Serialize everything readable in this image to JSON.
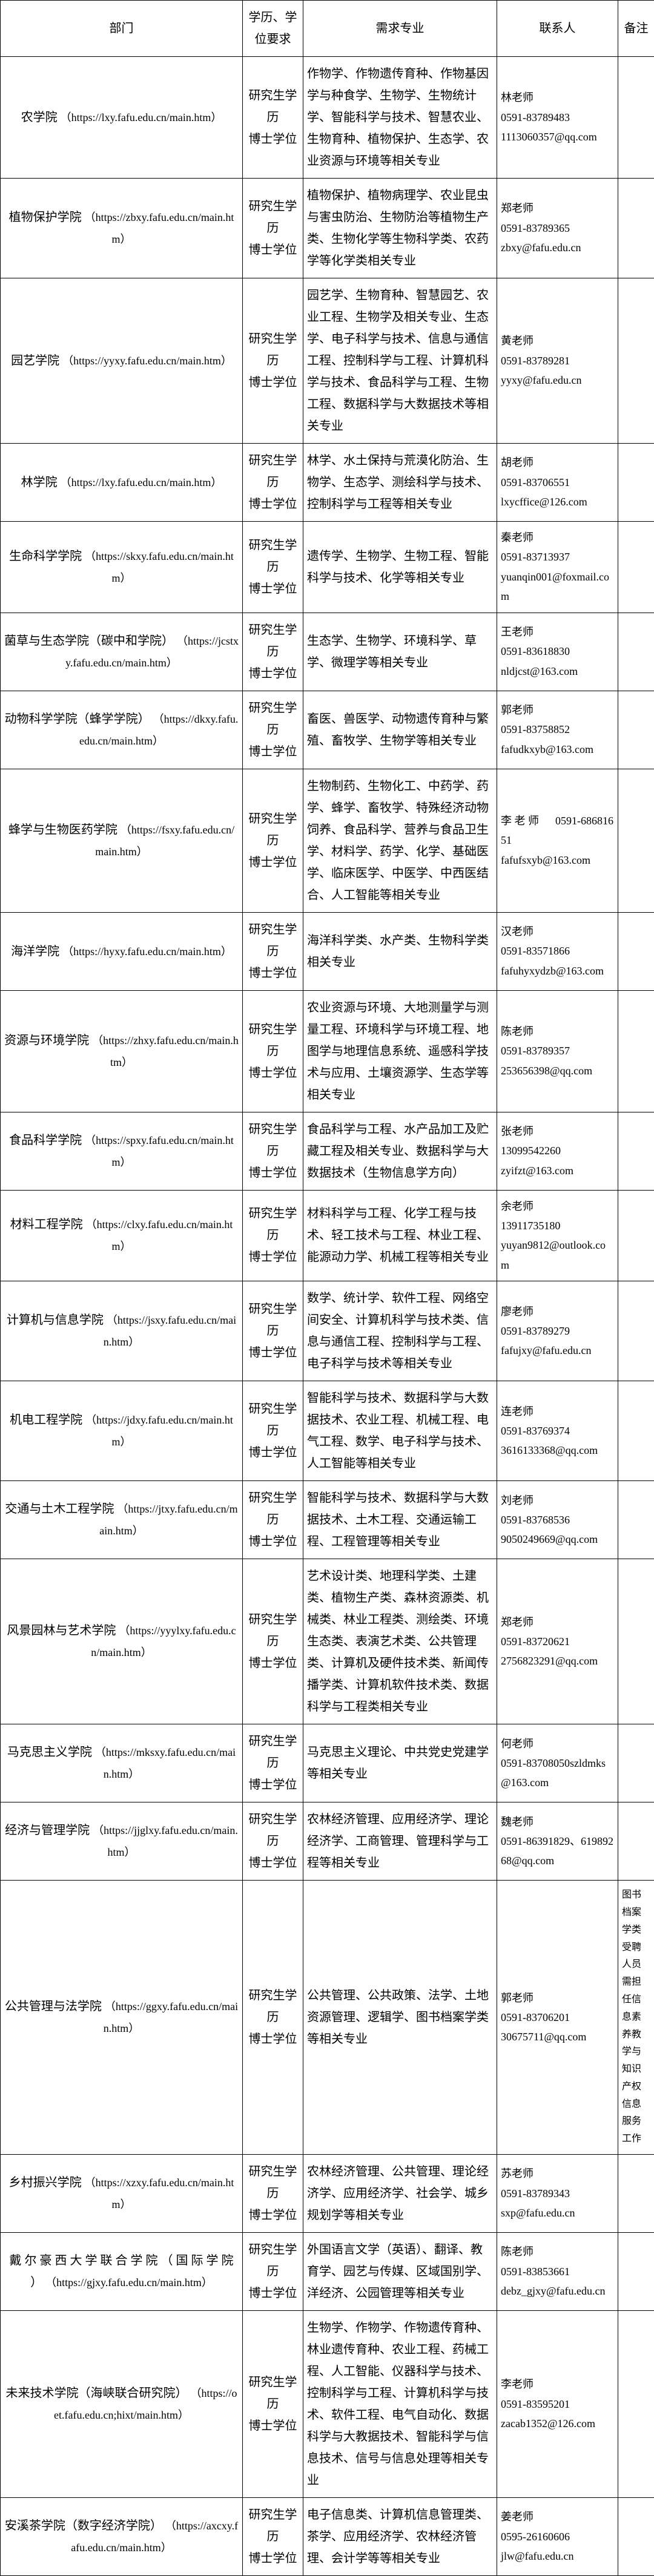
{
  "headers": {
    "dept": "部门",
    "edu": "学历、学位要求",
    "major": "需求专业",
    "contact": "联系人",
    "remark": "备注"
  },
  "edu_text": "研究生学历\n博士学位",
  "rows": [
    {
      "dept_name": "农学院",
      "dept_url": "https://lxy.fafu.edu.cn/main.htm",
      "major": "作物学、作物遗传育种、作物基因学与种食学、生物学、生物统计学、智能科学与技术、智慧农业、生物育种、植物保护、生态学、农业资源与环境等相关专业",
      "contact": "林老师\n0591-83789483\n1113060357@qq.com",
      "remark": ""
    },
    {
      "dept_name": "植物保护学院",
      "dept_url": "https://zbxy.fafu.edu.cn/main.htm",
      "major": "植物保护、植物病理学、农业昆虫与害虫防治、生物防治等植物生产类、生物化学等生物科学类、农药学等化学类相关专业",
      "contact": "郑老师\n0591-83789365\nzbxy@fafu.edu.cn",
      "remark": ""
    },
    {
      "dept_name": "园艺学院",
      "dept_url": "https://yyxy.fafu.edu.cn/main.htm",
      "major": "园艺学、生物育种、智慧园艺、农业工程、生物学及相关专业、生态学、电子科学与技术、信息与通信工程、控制科学与工程、计算机科学与技术、食品科学与工程、生物工程、数据科学与大数据技术等相关专业",
      "contact": "黄老师\n0591-83789281\nyyxy@fafu.edu.cn",
      "remark": ""
    },
    {
      "dept_name": "林学院",
      "dept_url": "https://lxy.fafu.edu.cn/main.htm",
      "major": "林学、水土保持与荒漠化防治、生物学、生态学、测绘科学与技术、控制科学与工程等相关专业",
      "contact": "胡老师\n0591-83706551\nlxycffice@126.com",
      "remark": ""
    },
    {
      "dept_name": "生命科学学院",
      "dept_url": "https://skxy.fafu.edu.cn/main.htm",
      "major": "遗传学、生物学、生物工程、智能科学与技术、化学等相关专业",
      "contact": "秦老师\n0591-83713937\nyuanqin001@foxmail.com",
      "remark": ""
    },
    {
      "dept_name": "菌草与生态学院（碳中和学院）",
      "dept_url": "https://jcstxy.fafu.edu.cn/main.htm",
      "major": "生态学、生物学、环境科学、草学、微理学等相关专业",
      "contact": "王老师\n0591-83618830\nnldjcst@163.com",
      "remark": ""
    },
    {
      "dept_name": "动物科学学院（蜂学学院）",
      "dept_url": "https://dkxy.fafu.edu.cn/main.htm",
      "major": "畜医、兽医学、动物遗传育种与繁殖、畜牧学、生物学等相关专业",
      "contact": "郭老师\n0591-83758852\nfafudkxyb@163.com",
      "remark": ""
    },
    {
      "dept_name": "蜂学与生物医药学院",
      "dept_url": "https://fsxy.fafu.edu.cn/main.htm",
      "major": "生物制药、生物化工、中药学、药学、蜂学、畜牧学、特殊经济动物饲养、食品科学、营养与食品卫生学、材料学、药学、化学、基础医学、临床医学、中医学、中西医结合、人工智能等相关专业",
      "contact": "李 老 师 　 0591-68681651\nfafufsxyb@163.com",
      "remark": ""
    },
    {
      "dept_name": "海洋学院",
      "dept_url": "https://hyxy.fafu.edu.cn/main.htm",
      "major": "海洋科学类、水产类、生物科学类相关专业",
      "contact": "汉老师\n0591-83571866\nfafuhyxydzb@163.com",
      "remark": ""
    },
    {
      "dept_name": "资源与环境学院",
      "dept_url": "https://zhxy.fafu.edu.cn/main.htm",
      "major": "农业资源与环境、大地测量学与测量工程、环境科学与环境工程、地图学与地理信息系统、遥感科学技术与应用、土壤资源学、生态学等相关专业",
      "contact": "陈老师\n0591-83789357\n253656398@qq.com",
      "remark": ""
    },
    {
      "dept_name": "食品科学学院",
      "dept_url": "https://spxy.fafu.edu.cn/main.htm",
      "major": "食品科学与工程、水产品加工及贮藏工程及相关专业、数据科学与大数据技术（生物信息学方向）",
      "contact": "张老师\n13099542260\nzyifzt@163.com",
      "remark": ""
    },
    {
      "dept_name": "材料工程学院",
      "dept_url": "https://clxy.fafu.edu.cn/main.htm",
      "major": "材料科学与工程、化学工程与技术、轻工技术与工程、林业工程、能源动力学、机械工程等相关专业",
      "contact": "余老师\n13911735180\nyuyan9812@outlook.com",
      "remark": ""
    },
    {
      "dept_name": "计算机与信息学院",
      "dept_url": "https://jsxy.fafu.edu.cn/main.htm",
      "major": "数学、统计学、软件工程、网络空间安全、计算机科学与技术类、信息与通信工程、控制科学与工程、电子科学与技术等相关专业",
      "contact": "廖老师\n0591-83789279\nfafujxy@fafu.edu.cn",
      "remark": ""
    },
    {
      "dept_name": "机电工程学院",
      "dept_url": "https://jdxy.fafu.edu.cn/main.htm",
      "major": "智能科学与技术、数据科学与大数据技术、农业工程、机械工程、电气工程、数学、电子科学与技术、人工智能等相关专业",
      "contact": "连老师\n0591-83769374\n3616133368@qq.com",
      "remark": ""
    },
    {
      "dept_name": "交通与土木工程学院",
      "dept_url": "https://jtxy.fafu.edu.cn/main.htm",
      "major": "智能科学与技术、数据科学与大数据技术、土木工程、交通运输工程、工程管理等相关专业",
      "contact": "刘老师\n0591-83768536\n9050249669@qq.com",
      "remark": ""
    },
    {
      "dept_name": "风景园林与艺术学院",
      "dept_url": "https://yyylxy.fafu.edu.cn/main.htm",
      "major": "艺术设计类、地理科学类、土建类、植物生产类、森林资源类、机械类、林业工程类、测绘类、环境生态类、表演艺术类、公共管理类、计算机及硬件技术类、新闻传播学类、计算机软件技术类、数据科学与工程类相关专业",
      "contact": "郑老师\n0591-83720621\n2756823291@qq.com",
      "remark": ""
    },
    {
      "dept_name": "马克思主义学院",
      "dept_url": "https://mksxy.fafu.edu.cn/main.htm",
      "major": "马克思主义理论、中共党史党建学等相关专业",
      "contact": "何老师\n0591-83708050szldmks@163.com",
      "remark": ""
    },
    {
      "dept_name": "经济与管理学院",
      "dept_url": "https://jjglxy.fafu.edu.cn/main.htm",
      "major": "农林经济管理、应用经济学、理论经济学、工商管理、管理科学与工程等相关专业",
      "contact": "魏老师\n0591-86391829、61989268@qq.com",
      "remark": ""
    },
    {
      "dept_name": "公共管理与法学院",
      "dept_url": "https://ggxy.fafu.edu.cn/main.htm",
      "major": "公共管理、公共政策、法学、土地资源管理、逻辑学、图书档案学类等相关专业",
      "contact": "郭老师\n0591-83706201\n30675711@qq.com",
      "remark": "图书档案学类受聘人员需担任信息素养教学与知识产权信息服务工作"
    },
    {
      "dept_name": "乡村振兴学院",
      "dept_url": "https://xzxy.fafu.edu.cn/main.htm",
      "major": "农林经济管理、公共管理、理论经济学、应用经济学、社会学、城乡规划学等相关专业",
      "contact": "苏老师\n0591-83789343\nsxp@fafu.edu.cn",
      "remark": ""
    },
    {
      "dept_name": "戴 尔 豪 西 大 学 联 合 学 院 （ 国 际 学 院 ）",
      "dept_url": "https://gjxy.fafu.edu.cn/main.htm",
      "major": "外国语言文学（英语）、翻译、教育学、园艺与传媒、区域国别学、洋经济、公园管理等相关专业",
      "contact": "陈老师\n0591-83853661\ndebz_gjxy@fafu.edu.cn",
      "remark": ""
    },
    {
      "dept_name": "未来技术学院（海峡联合研究院）",
      "dept_url": "https://oet.fafu.edu.cn;hixt/main.htm",
      "major": "生物学、作物学、作物遗传育种、林业遗传育种、农业工程、药械工程、人工智能、仪器科学与技术、控制科学与工程、计算机科学与技术、软件工程、电气自动化、数据科学与大教据技术、智能科学与信息技术、信号与信息处理等相关专业",
      "contact": "李老师\n0591-83595201\nzacab1352@126.com",
      "remark": ""
    },
    {
      "dept_name": "安溪茶学院（数字经济学院）",
      "dept_url": "https://axcxy.fafu.edu.cn/main.htm",
      "major": "电子信息类、计算机信息管理类、茶学、应用经济学、农林经济管理、会计学等等相关专业",
      "contact": "姜老师\n0595-26160606\njlw@fafu.edu.cn",
      "remark": ""
    }
  ]
}
